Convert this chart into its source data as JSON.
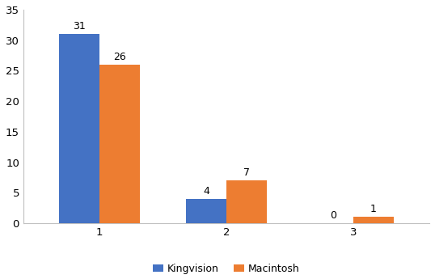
{
  "categories": [
    "1",
    "2",
    "3"
  ],
  "kingvision_values": [
    31,
    4,
    0
  ],
  "macintosh_values": [
    26,
    7,
    1
  ],
  "kingvision_color": "#4472c4",
  "macintosh_color": "#ed7d31",
  "ylim": [
    0,
    35
  ],
  "yticks": [
    0,
    5,
    10,
    15,
    20,
    25,
    30,
    35
  ],
  "bar_width": 0.32,
  "legend_labels": [
    "Kingvision",
    "Macintosh"
  ],
  "background_color": "#ffffff",
  "label_fontsize": 9,
  "tick_fontsize": 9.5,
  "legend_fontsize": 9,
  "spine_color": "#c0c0c0"
}
